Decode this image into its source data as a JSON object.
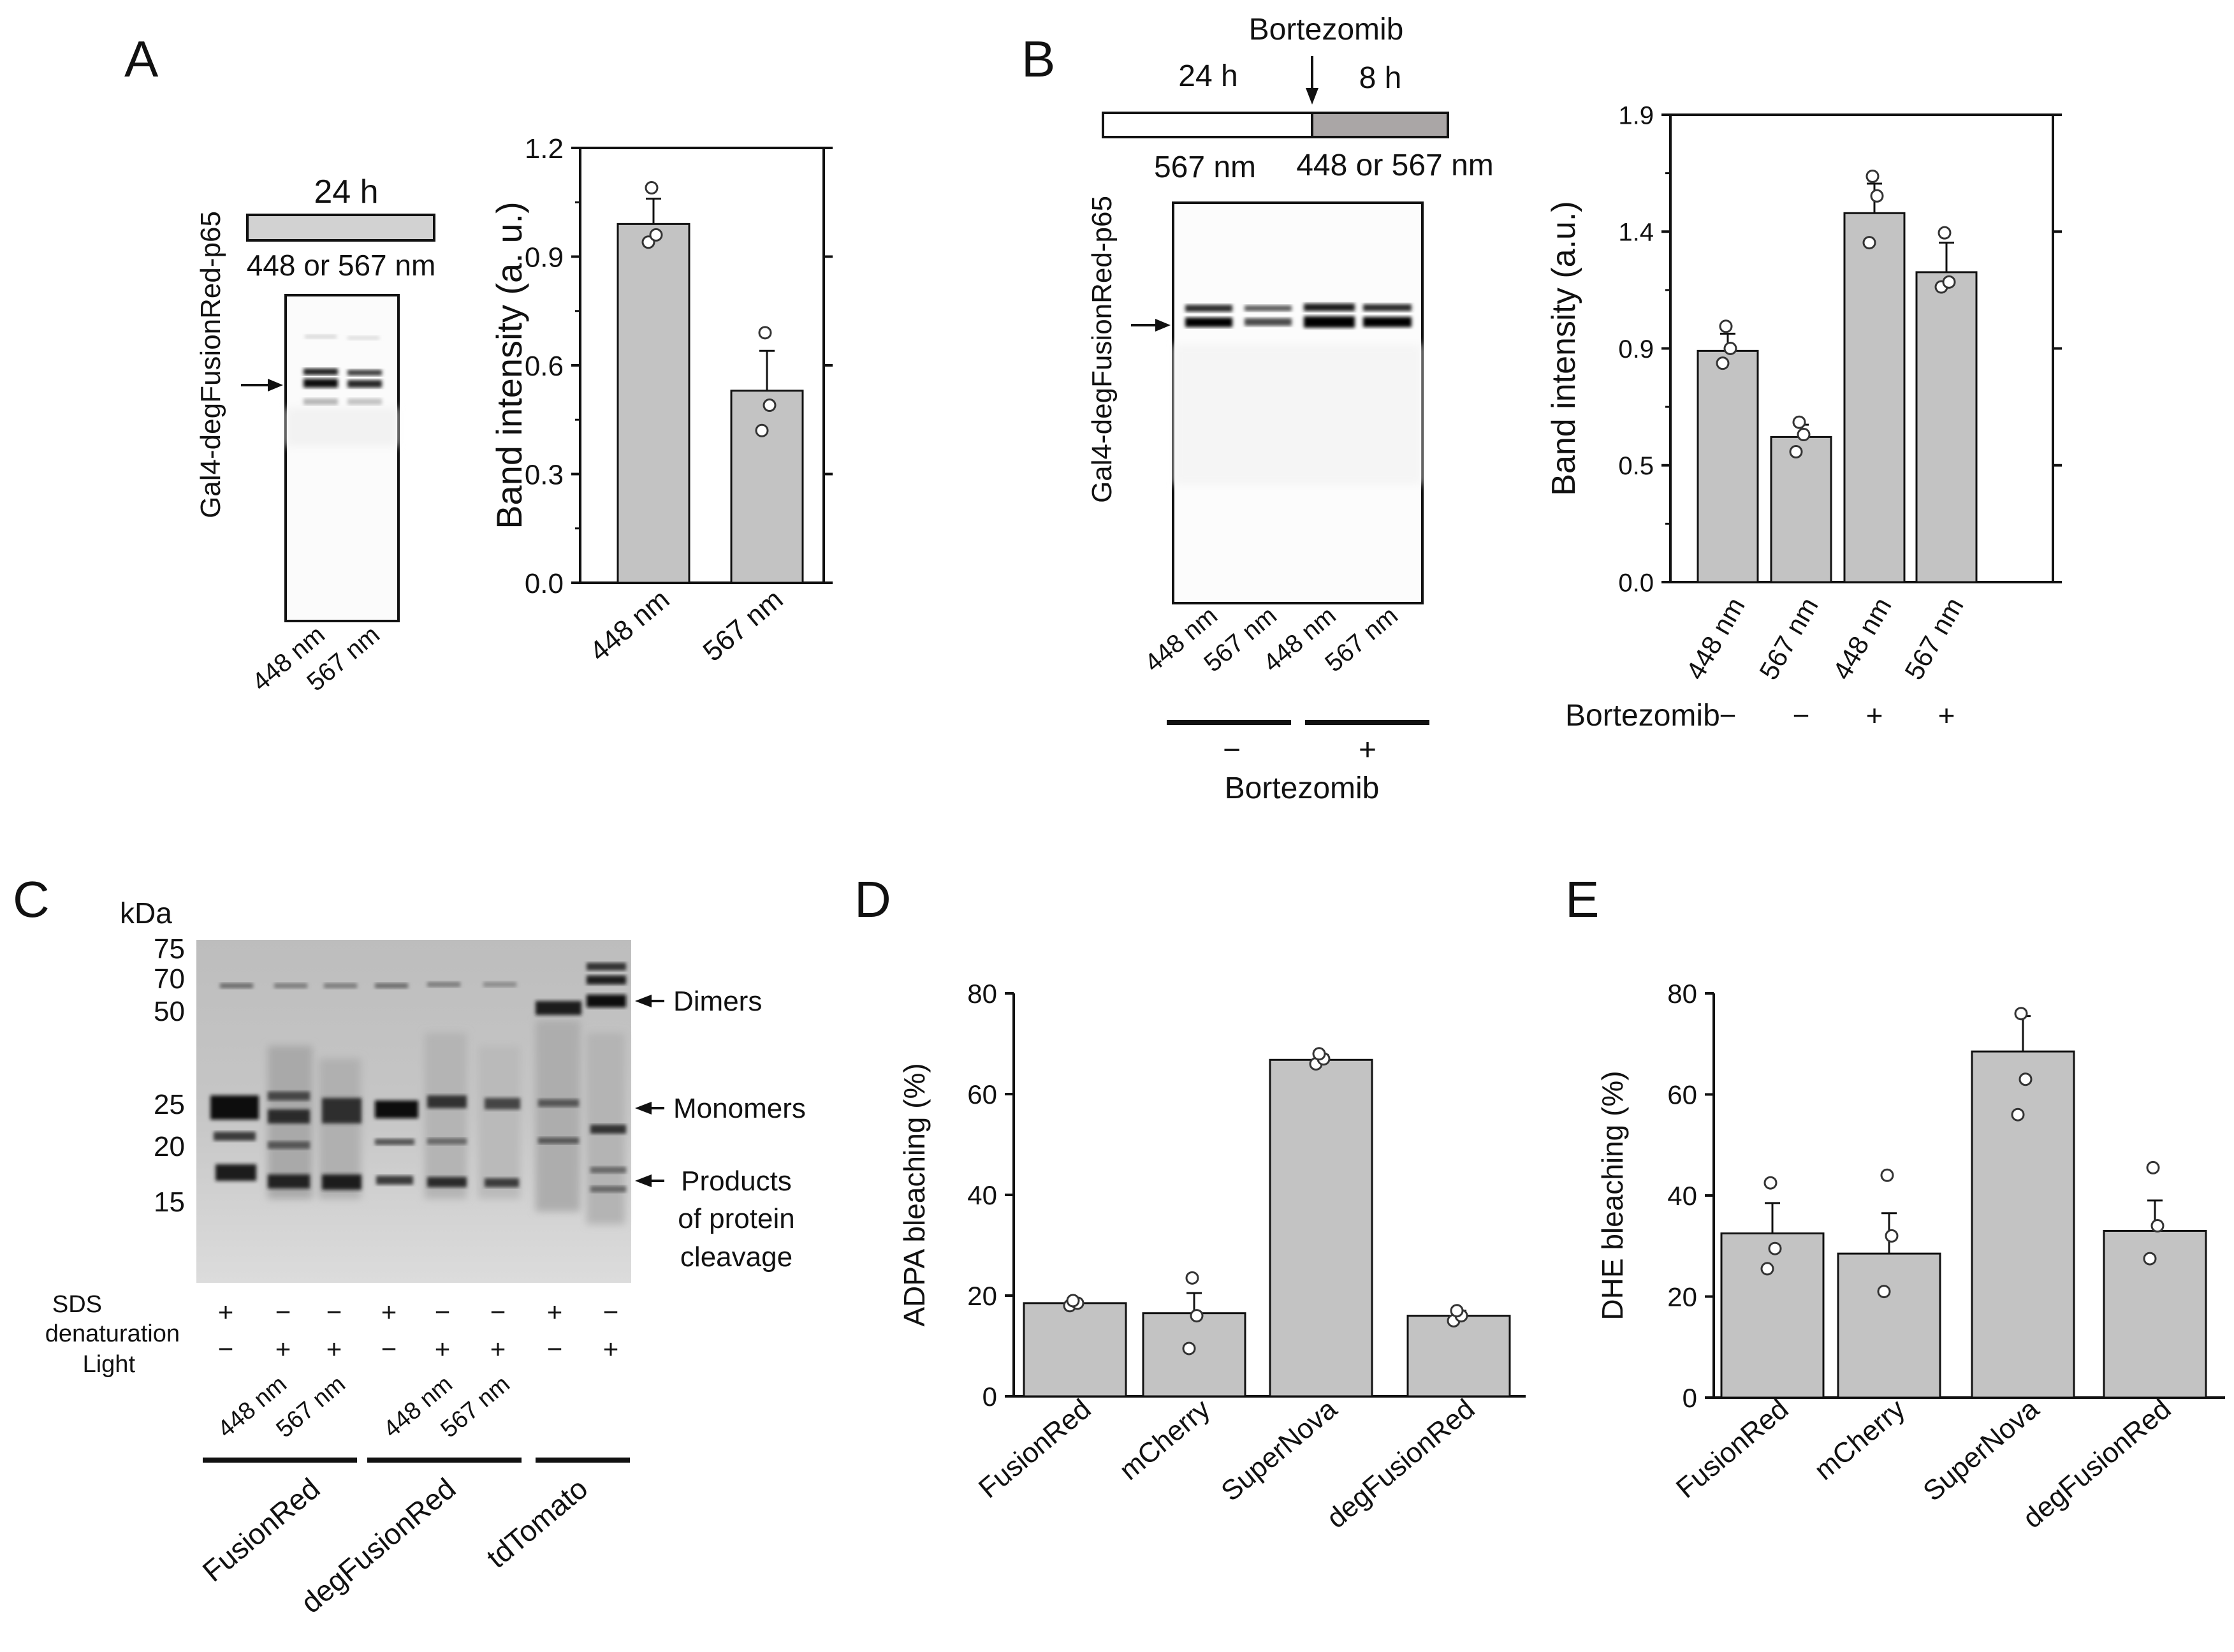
{
  "colors": {
    "bar": "#c3c3c3",
    "ink": "#111111",
    "timeline_gray": "#d2d2d2",
    "timeline_dark": "#aaa6a6"
  },
  "panelA": {
    "letter": "A",
    "timeline_label": "24 h",
    "wavelength_label": "448 or 567 nm",
    "blot_label": "Gal4-degFusionRed-p65",
    "lane_labels": [
      "448 nm",
      "567 nm"
    ]
  },
  "panelB": {
    "letter": "B",
    "drug_label": "Bortezomib",
    "time1": "24 h",
    "time2": "8 h",
    "wl1": "567 nm",
    "wl2": "448 or 567 nm",
    "blot_label": "Gal4-degFusionRed-p65",
    "lane_labels": [
      "448 nm",
      "567 nm",
      "448 nm",
      "567 nm"
    ],
    "minus": "−",
    "plus": "+",
    "bottom_label": "Bortezomib"
  },
  "panelC": {
    "letter": "C",
    "kda_label": "kDa",
    "markers": [
      "75",
      "70",
      "50",
      "25",
      "20",
      "15"
    ],
    "sds_label": [
      "SDS",
      "denaturation"
    ],
    "light_label": "Light",
    "sds_signs": [
      "+",
      "−",
      "−",
      "+",
      "−",
      "−",
      "+",
      "−"
    ],
    "light_signs": [
      "−",
      "+",
      "+",
      "−",
      "+",
      "+",
      "−",
      "+"
    ],
    "lane_wl": [
      "448 nm",
      "567 nm",
      "448 nm",
      "567 nm"
    ],
    "arrow_labels": [
      "Dimers",
      "Monomers",
      "Products",
      "of protein",
      "cleavage"
    ],
    "groups": [
      "FusionRed",
      "degFusionRed",
      "tdTomato"
    ]
  },
  "panelD": {
    "letter": "D"
  },
  "panelE": {
    "letter": "E"
  },
  "chart_data": [
    {
      "id": "A",
      "type": "bar",
      "categories": [
        "448 nm",
        "567 nm"
      ],
      "values": [
        0.99,
        0.53
      ],
      "errors": [
        0.07,
        0.11
      ],
      "points": [
        [
          0.94,
          0.96,
          1.09
        ],
        [
          0.42,
          0.49,
          0.69
        ]
      ],
      "ylabel": "Band intensity (a. u.)",
      "ylim": [
        0,
        1.2
      ],
      "yticks": [
        "0.0",
        "0.3",
        "0.6",
        "0.9",
        "1.2"
      ]
    },
    {
      "id": "B",
      "type": "bar",
      "categories": [
        "448 nm",
        "567 nm",
        "448 nm",
        "567 nm"
      ],
      "values": [
        0.94,
        0.59,
        1.5,
        1.26
      ],
      "errors": [
        0.07,
        0.05,
        0.12,
        0.12
      ],
      "points": [
        [
          0.89,
          0.95,
          1.04
        ],
        [
          0.53,
          0.6,
          0.65
        ],
        [
          1.38,
          1.57,
          1.65
        ],
        [
          1.2,
          1.22,
          1.42
        ]
      ],
      "ylabel": "Band intensity (a.u.)",
      "ylim": [
        0,
        1.9
      ],
      "yticks": [
        "0.0",
        "0.5",
        "0.9",
        "1.4",
        "1.9"
      ],
      "ytick_values": [
        0,
        0.475,
        0.95,
        1.425,
        1.9
      ],
      "row_label": "Bortezomib",
      "row_signs": [
        "−",
        "−",
        "+",
        "+"
      ]
    },
    {
      "id": "D",
      "type": "bar",
      "categories": [
        "FusionRed",
        "mCherry",
        "SuperNova",
        "degFusionRed"
      ],
      "values": [
        18.5,
        16.5,
        66.8,
        16.0
      ],
      "errors": [
        0.5,
        4.0,
        1.0,
        1.0
      ],
      "points": [
        [
          18.0,
          18.5,
          19.0
        ],
        [
          9.5,
          16.0,
          23.5
        ],
        [
          66.0,
          67.0,
          68.0
        ],
        [
          15.0,
          16.0,
          17.0
        ]
      ],
      "ylabel": "ADPA bleaching (%)",
      "ylim": [
        0,
        80
      ],
      "yticks": [
        "0",
        "20",
        "40",
        "60",
        "80"
      ]
    },
    {
      "id": "E",
      "type": "bar",
      "categories": [
        "FusionRed",
        "mCherry",
        "SuperNova",
        "degFusionRed"
      ],
      "values": [
        32.5,
        28.5,
        68.5,
        33.0
      ],
      "errors": [
        6.0,
        8.0,
        7.0,
        6.0
      ],
      "points": [
        [
          25.5,
          29.5,
          42.5
        ],
        [
          21.0,
          32.0,
          44.0
        ],
        [
          56.0,
          63.0,
          76.0
        ],
        [
          27.5,
          34.0,
          45.5
        ]
      ],
      "ylabel": "DHE bleaching (%)",
      "ylim": [
        0,
        80
      ],
      "yticks": [
        "0",
        "20",
        "40",
        "60",
        "80"
      ]
    }
  ]
}
